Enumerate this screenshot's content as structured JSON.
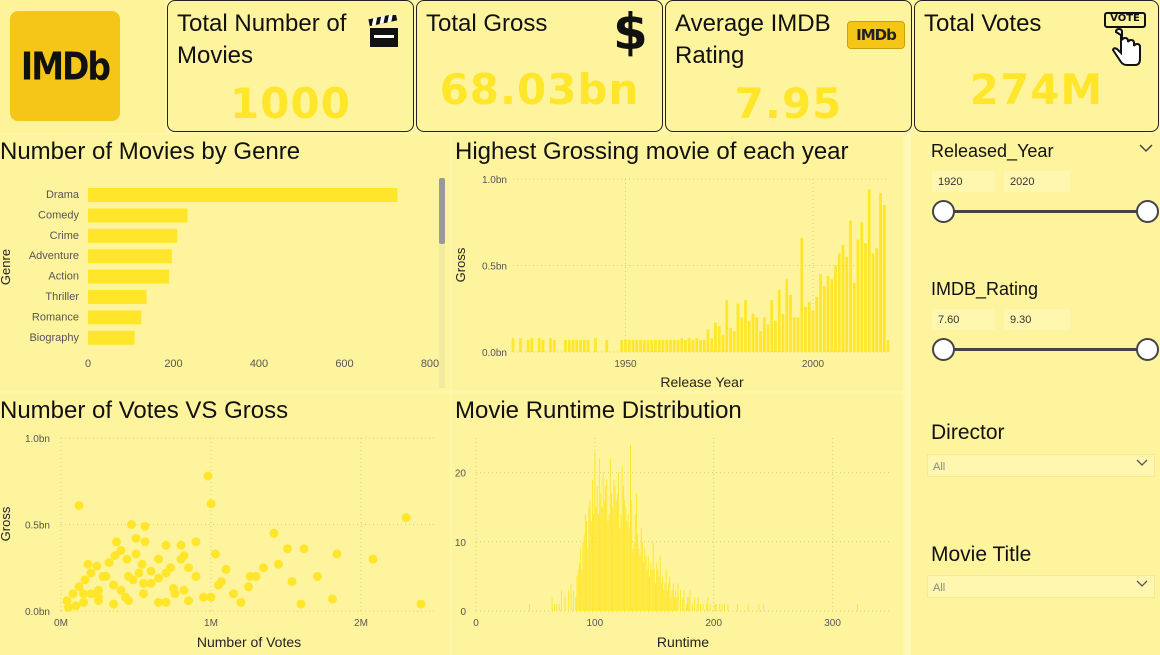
{
  "logo": {
    "text": "IMDb",
    "color": "#f5c518"
  },
  "kpis": {
    "movies": {
      "title": "Total Number of Movies",
      "value": "1000",
      "icon": "clapperboard-icon"
    },
    "gross": {
      "title": "Total Gross",
      "value": "68.03bn",
      "icon": "dollar-icon"
    },
    "rating": {
      "title": "Average IMDB Rating",
      "value": "7.95",
      "icon": "imdb-badge-icon",
      "badge": "IMDb"
    },
    "votes": {
      "title": "Total Votes",
      "value": "274M",
      "icon": "vote-hand-icon",
      "badge": "VOTE"
    }
  },
  "colors": {
    "accent": "#ffe62b",
    "background": "#fff7a8",
    "text": "#111111"
  },
  "charts": {
    "genre": {
      "title": "Number of Movies by Genre",
      "ylabel": "Genre",
      "x_ticks": [
        "0",
        "200",
        "400",
        "600",
        "800"
      ]
    },
    "grossing": {
      "title": "Highest Grossing movie of each year",
      "ylabel": "Gross",
      "xlabel": "Release Year",
      "y_ticks": [
        "1.0bn",
        "0.5bn",
        "0.0bn"
      ],
      "x_ticks": [
        "1950",
        "2000"
      ]
    },
    "votes": {
      "title": "Number of Votes VS Gross",
      "ylabel": "Gross",
      "xlabel": "Number of Votes",
      "y_ticks": [
        "1.0bn",
        "0.5bn",
        "0.0bn"
      ],
      "x_ticks": [
        "0M",
        "1M",
        "2M"
      ]
    },
    "runtime": {
      "title": "Movie Runtime Distribution",
      "xlabel": "Runtime",
      "y_ticks": [
        "20",
        "10",
        "0"
      ],
      "x_ticks": [
        "0",
        "100",
        "200",
        "300"
      ]
    }
  },
  "chart_data": [
    {
      "type": "bar",
      "orientation": "horizontal",
      "title": "Number of Movies by Genre",
      "ylabel": "Genre",
      "categories": [
        "Drama",
        "Comedy",
        "Crime",
        "Adventure",
        "Action",
        "Thriller",
        "Romance",
        "Biography"
      ],
      "values": [
        724,
        233,
        209,
        196,
        190,
        137,
        125,
        109
      ],
      "xlim": [
        0,
        800
      ],
      "x_ticks": [
        0,
        200,
        400,
        600,
        800
      ],
      "color": "#ffe62b"
    },
    {
      "type": "bar",
      "title": "Highest Grossing movie of each year",
      "xlabel": "Release Year",
      "ylabel": "Gross",
      "ylim": [
        0,
        1.0
      ],
      "xlim": [
        1920,
        2020
      ],
      "y_unit": "bn",
      "y_ticks": [
        0.0,
        0.5,
        1.0
      ],
      "x_ticks": [
        1950,
        2000
      ],
      "x": [
        1920,
        1921,
        1922,
        1923,
        1924,
        1925,
        1926,
        1927,
        1928,
        1929,
        1930,
        1931,
        1932,
        1933,
        1934,
        1935,
        1936,
        1937,
        1938,
        1939,
        1940,
        1941,
        1942,
        1943,
        1944,
        1945,
        1946,
        1947,
        1948,
        1949,
        1950,
        1951,
        1952,
        1953,
        1954,
        1955,
        1956,
        1957,
        1958,
        1959,
        1960,
        1961,
        1962,
        1963,
        1964,
        1965,
        1966,
        1967,
        1968,
        1969,
        1970,
        1971,
        1972,
        1973,
        1974,
        1975,
        1976,
        1977,
        1978,
        1979,
        1980,
        1981,
        1982,
        1983,
        1984,
        1985,
        1986,
        1987,
        1988,
        1989,
        1990,
        1991,
        1992,
        1993,
        1994,
        1995,
        1996,
        1997,
        1998,
        1999,
        2000,
        2001,
        2002,
        2003,
        2004,
        2005,
        2006,
        2007,
        2008,
        2009,
        2010,
        2011,
        2012,
        2013,
        2014,
        2015,
        2016,
        2017,
        2018,
        2019,
        2020
      ],
      "values": [
        0.08,
        0,
        0.08,
        0,
        0.07,
        0.08,
        0,
        0.08,
        0.07,
        0,
        0.08,
        0.07,
        0,
        0,
        0.07,
        0.07,
        0.07,
        0.07,
        0.07,
        0.07,
        0.07,
        0,
        0.08,
        0,
        0,
        0.07,
        0,
        0,
        0,
        0.07,
        0.07,
        0.07,
        0.07,
        0.07,
        0.07,
        0.07,
        0.07,
        0.07,
        0.07,
        0.07,
        0.07,
        0.07,
        0.07,
        0.07,
        0.07,
        0.08,
        0.07,
        0.08,
        0.07,
        0.08,
        0.07,
        0.07,
        0.13,
        0.08,
        0.17,
        0.15,
        0.1,
        0.3,
        0.14,
        0.12,
        0.28,
        0.2,
        0.3,
        0.18,
        0.22,
        0.2,
        0.12,
        0.2,
        0.16,
        0.3,
        0.18,
        0.36,
        0.22,
        0.42,
        0.33,
        0.2,
        0.2,
        0.66,
        0.26,
        0.29,
        0.24,
        0.32,
        0.45,
        0.38,
        0.44,
        0.42,
        0.5,
        0.57,
        0.62,
        0.55,
        0.76,
        0.4,
        0.65,
        0.75,
        0.63,
        0.94,
        0.57,
        0.6,
        0.92,
        0.85,
        0.07
      ],
      "color": "#ffe62b"
    },
    {
      "type": "scatter",
      "title": "Number of Votes VS Gross",
      "xlabel": "Number of Votes",
      "ylabel": "Gross",
      "xlim": [
        0,
        2500000
      ],
      "ylim": [
        0,
        1.0
      ],
      "y_unit": "bn",
      "x_ticks": [
        0,
        1000000,
        2000000
      ],
      "y_ticks": [
        0.0,
        0.5,
        1.0
      ],
      "x": [
        2300000,
        2080000,
        1840000,
        1810000,
        1710000,
        1620000,
        1540000,
        1510000,
        1420000,
        1260000,
        1070000,
        1030000,
        1000000,
        980000,
        850000,
        800000,
        730000,
        700000,
        820000,
        560000,
        540000,
        500000,
        470000,
        430000,
        370000,
        320000,
        250000,
        180000,
        120000,
        1000000,
        900000,
        820000,
        760000,
        700000,
        650000,
        600000,
        560000,
        520000,
        480000,
        440000,
        400000,
        360000,
        320000,
        280000,
        240000,
        200000,
        160000,
        120000,
        80000,
        40000,
        150000,
        250000,
        350000,
        450000,
        550000,
        650000,
        750000,
        850000,
        950000,
        1050000,
        1150000,
        1250000,
        1350000,
        300000,
        200000,
        100000,
        50000,
        400000,
        600000,
        800000,
        700000,
        500000,
        900000,
        1100000,
        1200000,
        1300000,
        1450000,
        1600000,
        2400000,
        350000,
        450000,
        550000,
        150000,
        250000,
        650000
      ],
      "values": [
        0.54,
        0.3,
        0.33,
        0.07,
        0.2,
        0.36,
        0.17,
        0.36,
        0.45,
        0.2,
        0.17,
        0.33,
        0.62,
        0.78,
        0.25,
        0.38,
        0.25,
        0.05,
        0.32,
        0.49,
        0.27,
        0.33,
        0.5,
        0.08,
        0.4,
        0.28,
        0.12,
        0.27,
        0.61,
        0.08,
        0.2,
        0.12,
        0.1,
        0.38,
        0.3,
        0.23,
        0.4,
        0.22,
        0.18,
        0.3,
        0.35,
        0.32,
        0.28,
        0.2,
        0.26,
        0.22,
        0.18,
        0.14,
        0.1,
        0.06,
        0.05,
        0.08,
        0.04,
        0.06,
        0.1,
        0.05,
        0.13,
        0.06,
        0.08,
        0.15,
        0.1,
        0.14,
        0.25,
        0.2,
        0.1,
        0.03,
        0.02,
        0.12,
        0.16,
        0.3,
        0.22,
        0.42,
        0.4,
        0.24,
        0.05,
        0.2,
        0.27,
        0.04,
        0.04,
        0.15,
        0.2,
        0.16,
        0.1,
        0.06,
        0.19
      ],
      "color": "#ffe62b"
    },
    {
      "type": "bar",
      "title": "Movie Runtime Distribution",
      "xlabel": "Runtime",
      "xlim": [
        0,
        350
      ],
      "ylim": [
        0,
        25
      ],
      "x_ticks": [
        0,
        100,
        200,
        300
      ],
      "y_ticks": [
        0,
        10,
        20
      ],
      "x": [
        45,
        64,
        66,
        68,
        70,
        72,
        75,
        78,
        80,
        82,
        84,
        85,
        86,
        87,
        88,
        89,
        90,
        91,
        92,
        93,
        94,
        95,
        96,
        97,
        98,
        99,
        100,
        101,
        102,
        103,
        104,
        105,
        106,
        107,
        108,
        109,
        110,
        111,
        112,
        113,
        114,
        115,
        116,
        117,
        118,
        119,
        120,
        121,
        122,
        123,
        124,
        125,
        126,
        127,
        128,
        129,
        130,
        131,
        132,
        133,
        134,
        135,
        136,
        137,
        138,
        139,
        140,
        141,
        142,
        143,
        144,
        145,
        146,
        147,
        148,
        149,
        150,
        151,
        152,
        153,
        154,
        155,
        156,
        157,
        158,
        159,
        160,
        161,
        162,
        163,
        164,
        165,
        166,
        167,
        168,
        169,
        170,
        172,
        174,
        175,
        177,
        178,
        179,
        180,
        182,
        184,
        186,
        187,
        189,
        191,
        194,
        195,
        197,
        201,
        202,
        205,
        207,
        209,
        212,
        220,
        229,
        238,
        242,
        321
      ],
      "values": [
        1,
        2,
        1,
        1,
        1,
        3,
        2,
        3,
        4,
        3,
        2,
        5,
        6,
        7,
        9,
        6,
        10,
        11,
        14,
        13,
        9,
        15,
        16,
        13,
        19,
        14,
        23,
        15,
        18,
        14,
        22,
        17,
        15,
        20,
        16,
        18,
        19,
        13,
        14,
        22,
        17,
        15,
        19,
        18,
        16,
        17,
        20,
        12,
        14,
        21,
        18,
        16,
        15,
        13,
        14,
        12,
        24,
        16,
        9,
        10,
        14,
        17,
        11,
        9,
        8,
        12,
        10,
        7,
        9,
        8,
        6,
        8,
        5,
        7,
        6,
        10,
        6,
        4,
        7,
        6,
        5,
        8,
        4,
        5,
        3,
        4,
        6,
        3,
        4,
        5,
        2,
        3,
        4,
        2,
        3,
        2,
        4,
        3,
        2,
        3,
        1,
        2,
        2,
        3,
        1,
        2,
        1,
        2,
        1,
        1,
        1,
        2,
        1,
        1,
        1,
        1,
        1,
        1,
        1,
        1,
        1,
        1,
        1,
        1
      ],
      "color": "#ffe62b"
    }
  ],
  "slicers": {
    "year": {
      "title": "Released_Year",
      "min": "1920",
      "max": "2020"
    },
    "rating": {
      "title": "IMDB_Rating",
      "min": "7.60",
      "max": "9.30"
    },
    "director": {
      "title": "Director",
      "value": "All"
    },
    "movie": {
      "title": "Movie Title",
      "value": "All"
    }
  }
}
